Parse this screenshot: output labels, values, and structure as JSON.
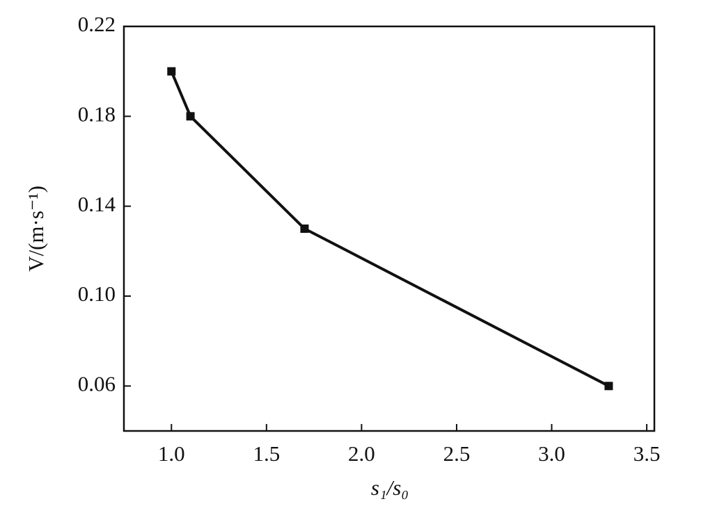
{
  "chart_data": {
    "type": "line",
    "x_label": "s₁/s₀",
    "y_label": "V/(m·s⁻¹)",
    "x": [
      1.0,
      1.1,
      1.7,
      3.3
    ],
    "series": [
      {
        "name": "V",
        "color": "#111111",
        "values": [
          0.2,
          0.18,
          0.13,
          0.06
        ]
      }
    ],
    "xlim": [
      0.75,
      3.54
    ],
    "ylim": [
      0.04,
      0.22
    ],
    "xticks": [
      {
        "value": 1.0,
        "label": "1.0"
      },
      1.5,
      {
        "value": 2.0,
        "label": "2.0"
      },
      2.5,
      {
        "value": 3.0,
        "label": "3.0"
      },
      3.5
    ],
    "yticks": [
      0.06,
      {
        "value": 0.1,
        "label": "0.10"
      },
      0.14,
      0.18,
      0.22
    ],
    "grid": false
  }
}
